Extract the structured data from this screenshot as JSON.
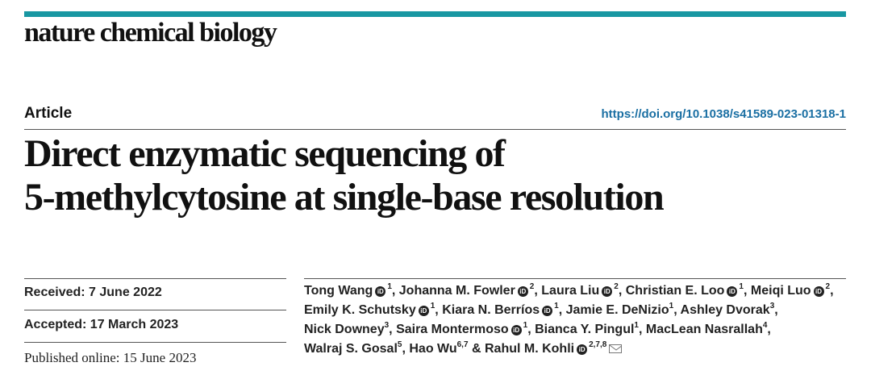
{
  "journal": {
    "name": "nature chemical biology"
  },
  "article": {
    "type": "Article",
    "doi": "https://doi.org/10.1038/s41589-023-01318-1",
    "title_lines": [
      "Direct enzymatic sequencing of",
      "5-methylcytosine at single-base resolution"
    ]
  },
  "dates": {
    "received": "Received: 7 June 2022",
    "accepted": "Accepted: 17 March 2023",
    "published": "Published online: 15 June 2023"
  },
  "authors": [
    {
      "name": "Tong Wang",
      "orcid": true,
      "aff": "1"
    },
    {
      "name": "Johanna M. Fowler",
      "orcid": true,
      "aff": "2"
    },
    {
      "name": "Laura Liu",
      "orcid": true,
      "aff": "2"
    },
    {
      "name": "Christian E. Loo",
      "orcid": true,
      "aff": "1"
    },
    {
      "name": "Meiqi Luo",
      "orcid": true,
      "aff": "2"
    },
    {
      "name": "Emily K. Schutsky",
      "orcid": true,
      "aff": "1"
    },
    {
      "name": "Kiara N. Berríos",
      "orcid": true,
      "aff": "1"
    },
    {
      "name": "Jamie E. DeNizio",
      "orcid": false,
      "aff": "1"
    },
    {
      "name": "Ashley Dvorak",
      "orcid": false,
      "aff": "3"
    },
    {
      "name": "Nick Downey",
      "orcid": false,
      "aff": "3"
    },
    {
      "name": "Saira Montermoso",
      "orcid": true,
      "aff": "1"
    },
    {
      "name": "Bianca Y. Pingul",
      "orcid": false,
      "aff": "1"
    },
    {
      "name": "MacLean Nasrallah",
      "orcid": false,
      "aff": "4"
    },
    {
      "name": "Walraj S. Gosal",
      "orcid": false,
      "aff": "5"
    },
    {
      "name": "Hao Wu",
      "orcid": false,
      "aff": "6,7"
    },
    {
      "name": "Rahul M. Kohli",
      "orcid": true,
      "aff": "2,7,8",
      "corresponding": true
    }
  ],
  "colors": {
    "accent_bar": "#1897a2",
    "doi_link": "#1a6fa3"
  },
  "icons": {
    "orcid": "orcid-icon",
    "email": "envelope-icon"
  }
}
